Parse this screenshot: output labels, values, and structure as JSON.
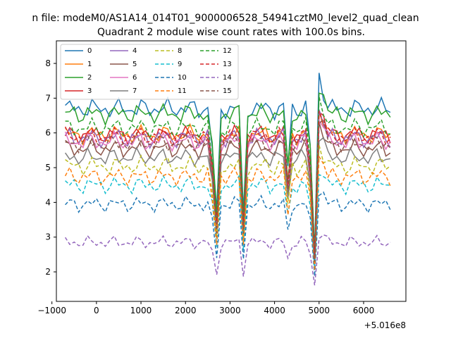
{
  "chart_data": {
    "type": "line",
    "suptitle": "n file: modeM0/AS1A14_014T01_9000006528_54941cztM0_level2_quad_clean",
    "title": "Quadrant 2 module wise count rates with 100.0s bins.",
    "xlabel": "",
    "ylabel": "",
    "x_offset_label": "+5.016e8",
    "xlim": [
      -900,
      6950
    ],
    "ylim": [
      1.15,
      8.65
    ],
    "xticks": [
      -1000,
      0,
      1000,
      2000,
      3000,
      4000,
      5000,
      6000
    ],
    "yticks": [
      2,
      3,
      4,
      5,
      6,
      7,
      8
    ],
    "xtick_labels": [
      "−1000",
      "0",
      "1000",
      "2000",
      "3000",
      "4000",
      "5000",
      "6000"
    ],
    "ytick_labels": [
      "2",
      "3",
      "4",
      "5",
      "6",
      "7",
      "8"
    ],
    "x_range": {
      "start": -700,
      "end": 6600,
      "step": 100
    },
    "legend": {
      "placement": "top-left",
      "columns": 4
    },
    "series": [
      {
        "name": "0",
        "color": "#1f77b4",
        "style": "solid",
        "base": 6.7,
        "amp": 0.32,
        "phase": 0.3
      },
      {
        "name": "1",
        "color": "#ff7f0e",
        "style": "solid",
        "base": 5.95,
        "amp": 0.3,
        "phase": 1.1
      },
      {
        "name": "2",
        "color": "#2ca02c",
        "style": "solid",
        "base": 6.55,
        "amp": 0.32,
        "phase": 2.0
      },
      {
        "name": "3",
        "color": "#d62728",
        "style": "solid",
        "base": 5.95,
        "amp": 0.28,
        "phase": 2.7
      },
      {
        "name": "4",
        "color": "#9467bd",
        "style": "solid",
        "base": 5.85,
        "amp": 0.3,
        "phase": 3.5
      },
      {
        "name": "5",
        "color": "#8c564b",
        "style": "solid",
        "base": 5.55,
        "amp": 0.3,
        "phase": 4.1
      },
      {
        "name": "6",
        "color": "#e377c2",
        "style": "solid",
        "base": 5.75,
        "amp": 0.3,
        "phase": 4.9
      },
      {
        "name": "7",
        "color": "#7f7f7f",
        "style": "solid",
        "base": 5.3,
        "amp": 0.28,
        "phase": 5.6
      },
      {
        "name": "8",
        "color": "#bcbd22",
        "style": "dashed",
        "base": 5.05,
        "amp": 0.3,
        "phase": 0.8
      },
      {
        "name": "9",
        "color": "#17becf",
        "style": "dashed",
        "base": 4.5,
        "amp": 0.28,
        "phase": 1.6
      },
      {
        "name": "10",
        "color": "#1f77b4",
        "style": "dashed",
        "base": 3.95,
        "amp": 0.25,
        "phase": 2.4
      },
      {
        "name": "11",
        "color": "#ff7f0e",
        "style": "dashed",
        "base": 4.75,
        "amp": 0.28,
        "phase": 3.2
      },
      {
        "name": "12",
        "color": "#2ca02c",
        "style": "dashed",
        "base": 6.15,
        "amp": 0.3,
        "phase": 3.9
      },
      {
        "name": "13",
        "color": "#d62728",
        "style": "dashed",
        "base": 5.9,
        "amp": 0.28,
        "phase": 4.6
      },
      {
        "name": "14",
        "color": "#9467bd",
        "style": "dashed",
        "base": 2.85,
        "amp": 0.2,
        "phase": 5.3
      },
      {
        "name": "15",
        "color": "#8c564b",
        "style": "dashed",
        "base": 5.7,
        "amp": 0.3,
        "phase": 6.0
      }
    ],
    "features": [
      {
        "x": 2600,
        "depth": 0.2
      },
      {
        "x": 2700,
        "depth": 0.55
      },
      {
        "x": 3300,
        "depth": 0.55
      },
      {
        "x": 4300,
        "depth": 0.3
      },
      {
        "x": 4800,
        "depth": 0.2
      },
      {
        "x": 4900,
        "depth": 0.75
      },
      {
        "x": 5000,
        "depth": -0.18
      },
      {
        "x": 5100,
        "depth": -0.1
      }
    ]
  }
}
